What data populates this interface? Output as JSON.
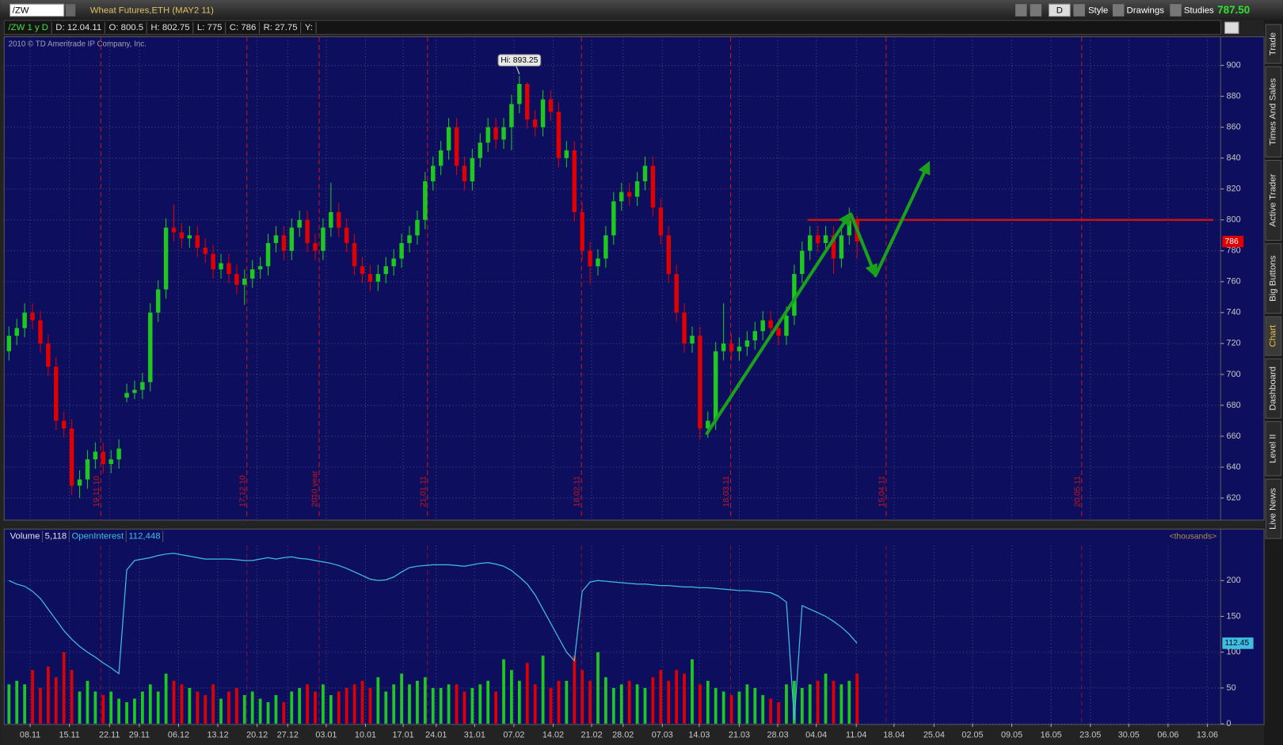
{
  "toolbar": {
    "symbol": "/ZW",
    "description": "Wheat Futures,ETH (MAY2 11)",
    "buttons": [
      "D",
      "Style",
      "Drawings",
      "Studies"
    ],
    "last": "787.50"
  },
  "info_bar": [
    "/ZW 1 y D",
    "D: 12.04.11",
    "O: 800.5",
    "H: 802.75",
    "L: 775",
    "C: 786",
    "R: 27.75",
    "Y:"
  ],
  "copyright": "2010 © TD Ameritrade IP Company, Inc.",
  "sidebar": [
    "Trade",
    "Times And Sales",
    "Active Trader",
    "Big Buttons",
    "Chart",
    "Dashboard",
    "Level II",
    "Live News"
  ],
  "chart_data": [
    {
      "type": "candlestick",
      "open": [
        715,
        725,
        730,
        740,
        735,
        720,
        705,
        670,
        665,
        628,
        632,
        645,
        650,
        642,
        645,
        685,
        688,
        690,
        695,
        740,
        755,
        795,
        792,
        788,
        790,
        782,
        778,
        768,
        772,
        765,
        758,
        762,
        768,
        770,
        785,
        790,
        780,
        795,
        800,
        785,
        780,
        795,
        805,
        795,
        785,
        770,
        765,
        760,
        765,
        770,
        775,
        785,
        790,
        800,
        825,
        835,
        845,
        860,
        835,
        825,
        840,
        850,
        860,
        852,
        860,
        875,
        888,
        865,
        860,
        878,
        870,
        840,
        845,
        805,
        780,
        770,
        775,
        790,
        812,
        818,
        815,
        825,
        835,
        808,
        790,
        765,
        740,
        720,
        725,
        665,
        670,
        715,
        720,
        715,
        718,
        722,
        728,
        735,
        730,
        725,
        738,
        765,
        780,
        790,
        785,
        790,
        775,
        790,
        800.5
      ],
      "high": [
        731,
        736,
        746,
        746,
        741,
        726,
        711,
        676,
        671,
        638,
        651,
        656,
        656,
        651,
        658,
        694,
        696,
        701,
        746,
        761,
        801,
        810,
        798,
        796,
        796,
        788,
        784,
        778,
        778,
        771,
        768,
        774,
        776,
        791,
        796,
        796,
        801,
        806,
        806,
        791,
        801,
        824,
        811,
        801,
        791,
        776,
        771,
        771,
        776,
        781,
        791,
        796,
        806,
        831,
        841,
        851,
        866,
        866,
        841,
        846,
        856,
        866,
        866,
        866,
        881,
        893.25,
        889,
        871,
        884,
        884,
        876,
        851,
        851,
        811,
        786,
        781,
        796,
        818,
        824,
        824,
        831,
        841,
        841,
        814,
        796,
        771,
        746,
        731,
        731,
        676,
        721,
        746,
        726,
        724,
        728,
        734,
        741,
        741,
        736,
        744,
        771,
        786,
        796,
        796,
        796,
        796,
        796,
        808,
        802.75
      ],
      "low": [
        709,
        719,
        724,
        729,
        714,
        699,
        664,
        659,
        622,
        620,
        626,
        639,
        636,
        636,
        639,
        682,
        684,
        684,
        689,
        734,
        749,
        786,
        782,
        782,
        776,
        772,
        762,
        762,
        759,
        752,
        745,
        756,
        762,
        764,
        779,
        774,
        774,
        789,
        779,
        774,
        774,
        789,
        789,
        779,
        764,
        759,
        754,
        754,
        759,
        764,
        769,
        779,
        784,
        794,
        819,
        829,
        839,
        829,
        819,
        819,
        834,
        844,
        846,
        846,
        845,
        869,
        859,
        854,
        854,
        864,
        834,
        834,
        799,
        774,
        758,
        764,
        769,
        784,
        806,
        809,
        809,
        819,
        802,
        784,
        759,
        734,
        714,
        714,
        658,
        659,
        664,
        709,
        709,
        709,
        712,
        716,
        722,
        724,
        719,
        719,
        732,
        759,
        774,
        779,
        779,
        765,
        769,
        784,
        775
      ],
      "close": [
        725,
        730,
        740,
        735,
        720,
        705,
        670,
        665,
        628,
        632,
        645,
        650,
        642,
        645,
        652,
        688,
        690,
        695,
        740,
        755,
        795,
        792,
        788,
        790,
        782,
        778,
        768,
        772,
        765,
        758,
        762,
        768,
        770,
        785,
        790,
        780,
        795,
        800,
        785,
        780,
        795,
        805,
        795,
        785,
        770,
        765,
        760,
        765,
        770,
        775,
        785,
        790,
        800,
        825,
        835,
        845,
        860,
        835,
        825,
        840,
        850,
        860,
        852,
        860,
        875,
        888,
        865,
        860,
        878,
        870,
        840,
        845,
        805,
        780,
        770,
        775,
        790,
        812,
        818,
        815,
        825,
        835,
        808,
        790,
        765,
        740,
        720,
        725,
        665,
        670,
        715,
        720,
        715,
        718,
        722,
        728,
        735,
        730,
        725,
        738,
        765,
        780,
        790,
        785,
        790,
        775,
        790,
        800,
        786
      ],
      "up_color": "#1fc81f",
      "down_color": "#e00000",
      "xlim": [
        -0.6,
        154.3
      ],
      "ylim": [
        605.7,
        918.5
      ],
      "yticks": [
        620,
        640,
        660,
        680,
        700,
        720,
        740,
        760,
        780,
        800,
        820,
        840,
        860,
        880,
        900
      ],
      "grid": true,
      "annotations": [
        {
          "text": "Hi: 893.25",
          "x": 65,
          "value": 893.25
        }
      ],
      "hlines": [
        {
          "value": 800,
          "from": 101.7,
          "color": "#d01010"
        }
      ],
      "markers": [
        {
          "x": 11.7,
          "label": "19.11.10"
        },
        {
          "x": 30.3,
          "label": "17.12.10"
        },
        {
          "x": 39.5,
          "label": "2010 year"
        },
        {
          "x": 53.3,
          "label": "21.01.11"
        },
        {
          "x": 72.9,
          "label": "18.02.11"
        },
        {
          "x": 91.9,
          "label": "18.03.11"
        },
        {
          "x": 111.7,
          "label": "15.04.11"
        },
        {
          "x": 136.6,
          "label": "20.05.11"
        }
      ],
      "marker_color": "#c81818"
    },
    {
      "type": "volume",
      "legend": [
        {
          "name": "Volume",
          "value_label": "5,118"
        },
        {
          "name": "OpenInterest",
          "value_label": "112,448"
        }
      ],
      "unit_label": "<thousands>",
      "volume": [
        55,
        60,
        55,
        75,
        50,
        80,
        65,
        100,
        75,
        45,
        60,
        45,
        40,
        45,
        35,
        30,
        35,
        45,
        55,
        45,
        70,
        60,
        55,
        50,
        45,
        40,
        55,
        35,
        45,
        50,
        40,
        45,
        35,
        30,
        40,
        30,
        45,
        50,
        55,
        45,
        55,
        40,
        45,
        50,
        55,
        60,
        50,
        65,
        45,
        55,
        70,
        55,
        60,
        65,
        50,
        50,
        55,
        55,
        45,
        50,
        55,
        60,
        45,
        90,
        75,
        60,
        85,
        55,
        95,
        50,
        60,
        60,
        95,
        75,
        60,
        100,
        65,
        50,
        55,
        60,
        55,
        50,
        65,
        75,
        60,
        75,
        70,
        90,
        55,
        60,
        50,
        45,
        40,
        45,
        55,
        50,
        40,
        35,
        30,
        55,
        60,
        50,
        55,
        60,
        70,
        60,
        55,
        60,
        70
      ],
      "open_interest": [
        200,
        195,
        192,
        185,
        175,
        160,
        145,
        130,
        118,
        108,
        100,
        93,
        85,
        78,
        70,
        215,
        228,
        230,
        232,
        235,
        237,
        238,
        236,
        234,
        232,
        230,
        230,
        230,
        230,
        229,
        228,
        228,
        230,
        232,
        230,
        232,
        233,
        231,
        230,
        228,
        226,
        224,
        221,
        217,
        212,
        207,
        202,
        200,
        201,
        205,
        212,
        218,
        220,
        221,
        222,
        222,
        222,
        221,
        220,
        222,
        224,
        225,
        223,
        220,
        214,
        205,
        195,
        180,
        160,
        140,
        120,
        100,
        88,
        185,
        198,
        200,
        199,
        198,
        197,
        196,
        195,
        195,
        194,
        193,
        193,
        192,
        191,
        191,
        190,
        190,
        189,
        188,
        187,
        186,
        186,
        185,
        184,
        183,
        178,
        170,
        5,
        165,
        160,
        155,
        150,
        143,
        135,
        125,
        112.45
      ],
      "oi_color": "#3fbfe0",
      "xlim": [
        -0.6,
        154.3
      ],
      "ylim": [
        0,
        249
      ],
      "yticks": [
        0,
        50,
        100,
        150,
        200
      ],
      "xticks": [
        {
          "value": 2.7,
          "label": "08.11"
        },
        {
          "value": 7.7,
          "label": "15.11"
        },
        {
          "value": 12.8,
          "label": "22.11"
        },
        {
          "value": 16.6,
          "label": "29.11"
        },
        {
          "value": 21.6,
          "label": "06.12"
        },
        {
          "value": 26.6,
          "label": "13.12"
        },
        {
          "value": 31.6,
          "label": "20.12"
        },
        {
          "value": 35.5,
          "label": "27.12"
        },
        {
          "value": 40.4,
          "label": "03.01"
        },
        {
          "value": 45.4,
          "label": "10.01"
        },
        {
          "value": 50.2,
          "label": "17.01"
        },
        {
          "value": 54.4,
          "label": "24.01"
        },
        {
          "value": 59.3,
          "label": "31.01"
        },
        {
          "value": 64.3,
          "label": "07.02"
        },
        {
          "value": 69.3,
          "label": "14.02"
        },
        {
          "value": 74.2,
          "label": "21.02"
        },
        {
          "value": 78.2,
          "label": "28.02"
        },
        {
          "value": 83.2,
          "label": "07.03"
        },
        {
          "value": 87.9,
          "label": "14.03"
        },
        {
          "value": 93.0,
          "label": "21.03"
        },
        {
          "value": 97.9,
          "label": "28.03"
        },
        {
          "value": 102.8,
          "label": "04.04"
        },
        {
          "value": 107.9,
          "label": "11.04"
        },
        {
          "value": 112.7,
          "label": "18.04"
        },
        {
          "value": 117.8,
          "label": "25.04"
        },
        {
          "value": 122.7,
          "label": "02.05"
        },
        {
          "value": 127.7,
          "label": "09.05"
        },
        {
          "value": 132.7,
          "label": "16.05"
        },
        {
          "value": 137.7,
          "label": "23.05"
        },
        {
          "value": 142.6,
          "label": "30.05"
        },
        {
          "value": 147.6,
          "label": "06.06"
        },
        {
          "value": 152.6,
          "label": "13.06"
        }
      ]
    }
  ]
}
